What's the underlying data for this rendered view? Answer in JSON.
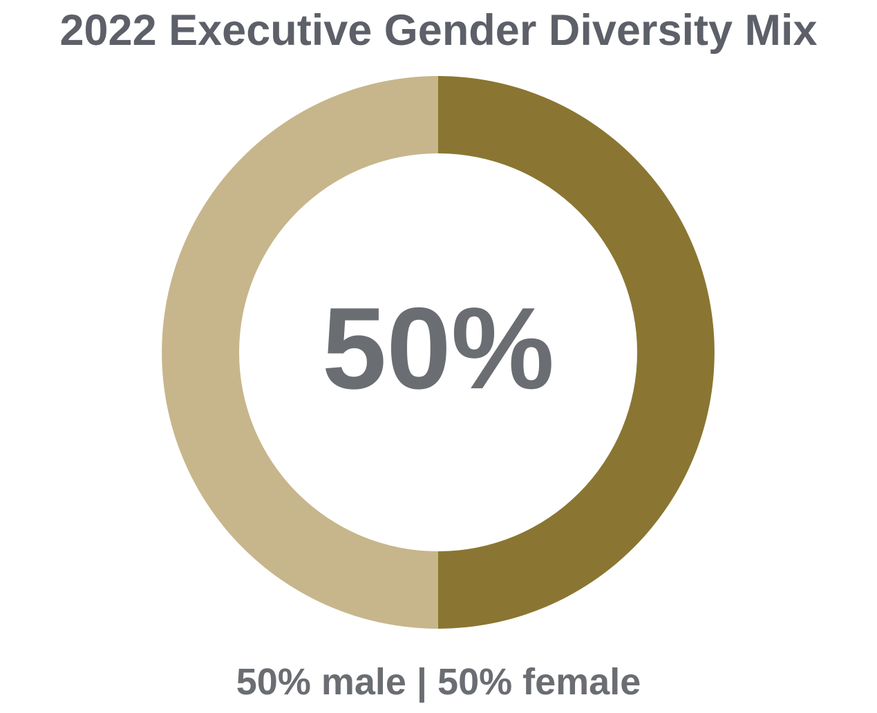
{
  "chart_data": {
    "type": "pie",
    "style": "donut",
    "title": "2022 Executive Gender Diversity Mix",
    "center_label": "50%",
    "caption": "50% male | 50% female",
    "slices": [
      {
        "value": 50,
        "color": "#8a7632"
      },
      {
        "value": 50,
        "color": "#c7b68b"
      }
    ],
    "legend": "none"
  }
}
